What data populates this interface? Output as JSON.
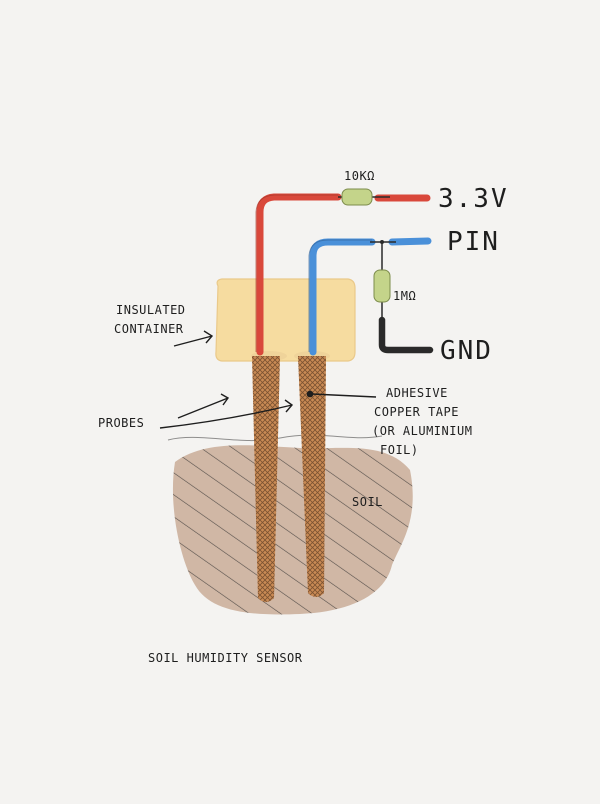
{
  "colors": {
    "paper": "#f4f3f1",
    "ink": "#1e1e1e",
    "wire_red": "#d9483b",
    "wire_blue": "#4a90d9",
    "wire_black": "#2a2a2a",
    "resistor": "#c4d48a",
    "container": "#f6dca0",
    "probe": "#c98a54",
    "soil": "#c9ab98"
  },
  "labels": {
    "r_top": "10KΩ",
    "r_mid": "1MΩ",
    "supply": "3.3V",
    "pin": "PIN",
    "gnd": "GND",
    "container_l1": "INSULATED",
    "container_l2": "CONTAINER",
    "probes": "PROBES",
    "tape_l1": "ADHESIVE",
    "tape_l2": "COPPER TAPE",
    "tape_l3": "(OR ALUMINIUM",
    "tape_l4": "FOIL)",
    "soil": "SOIL",
    "caption": "SOIL HUMIDITY SENSOR"
  }
}
